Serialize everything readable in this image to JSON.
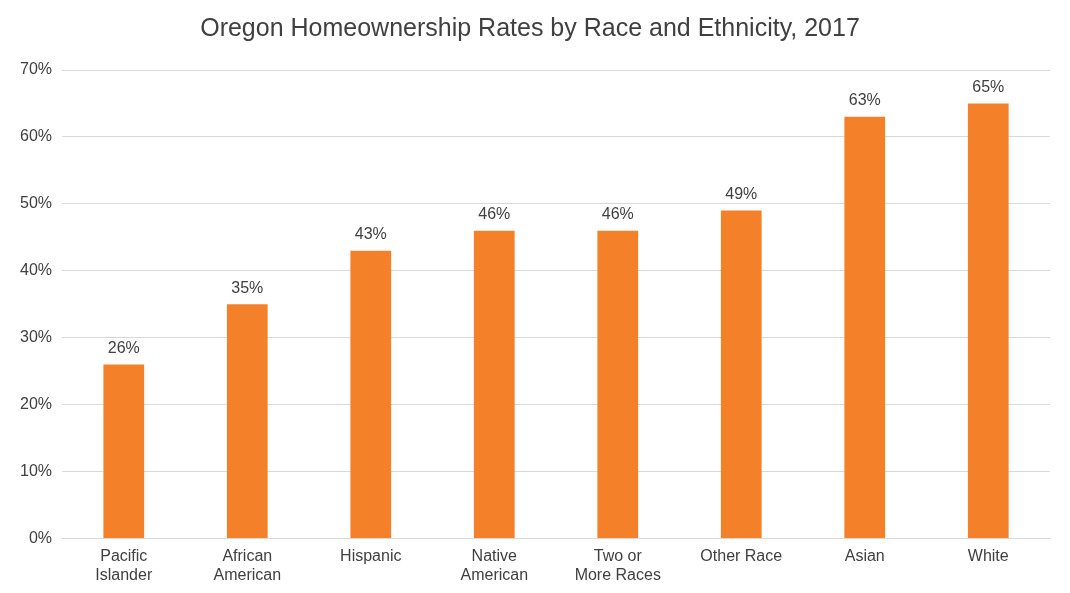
{
  "chart_data": {
    "type": "bar",
    "title": "Oregon Homeownership Rates by Race and Ethnicity, 2017",
    "categories": [
      "Pacific Islander",
      "African American",
      "Hispanic",
      "Native American",
      "Two or More Races",
      "Other Race",
      "Asian",
      "White"
    ],
    "values": [
      26,
      35,
      43,
      46,
      46,
      49,
      63,
      65
    ],
    "value_labels": [
      "26%",
      "35%",
      "43%",
      "46%",
      "46%",
      "49%",
      "63%",
      "65%"
    ],
    "color": "#f4812a",
    "ylim": [
      0,
      70
    ],
    "yticks": [
      {
        "value": 0,
        "label": "0%"
      },
      {
        "value": 10,
        "label": "10%"
      },
      {
        "value": 20,
        "label": "20%"
      },
      {
        "value": 30,
        "label": "30%"
      },
      {
        "value": 40,
        "label": "40%"
      },
      {
        "value": 50,
        "label": "50%"
      },
      {
        "value": 60,
        "label": "60%"
      },
      {
        "value": 70,
        "label": "70%"
      }
    ],
    "grid": "y"
  }
}
